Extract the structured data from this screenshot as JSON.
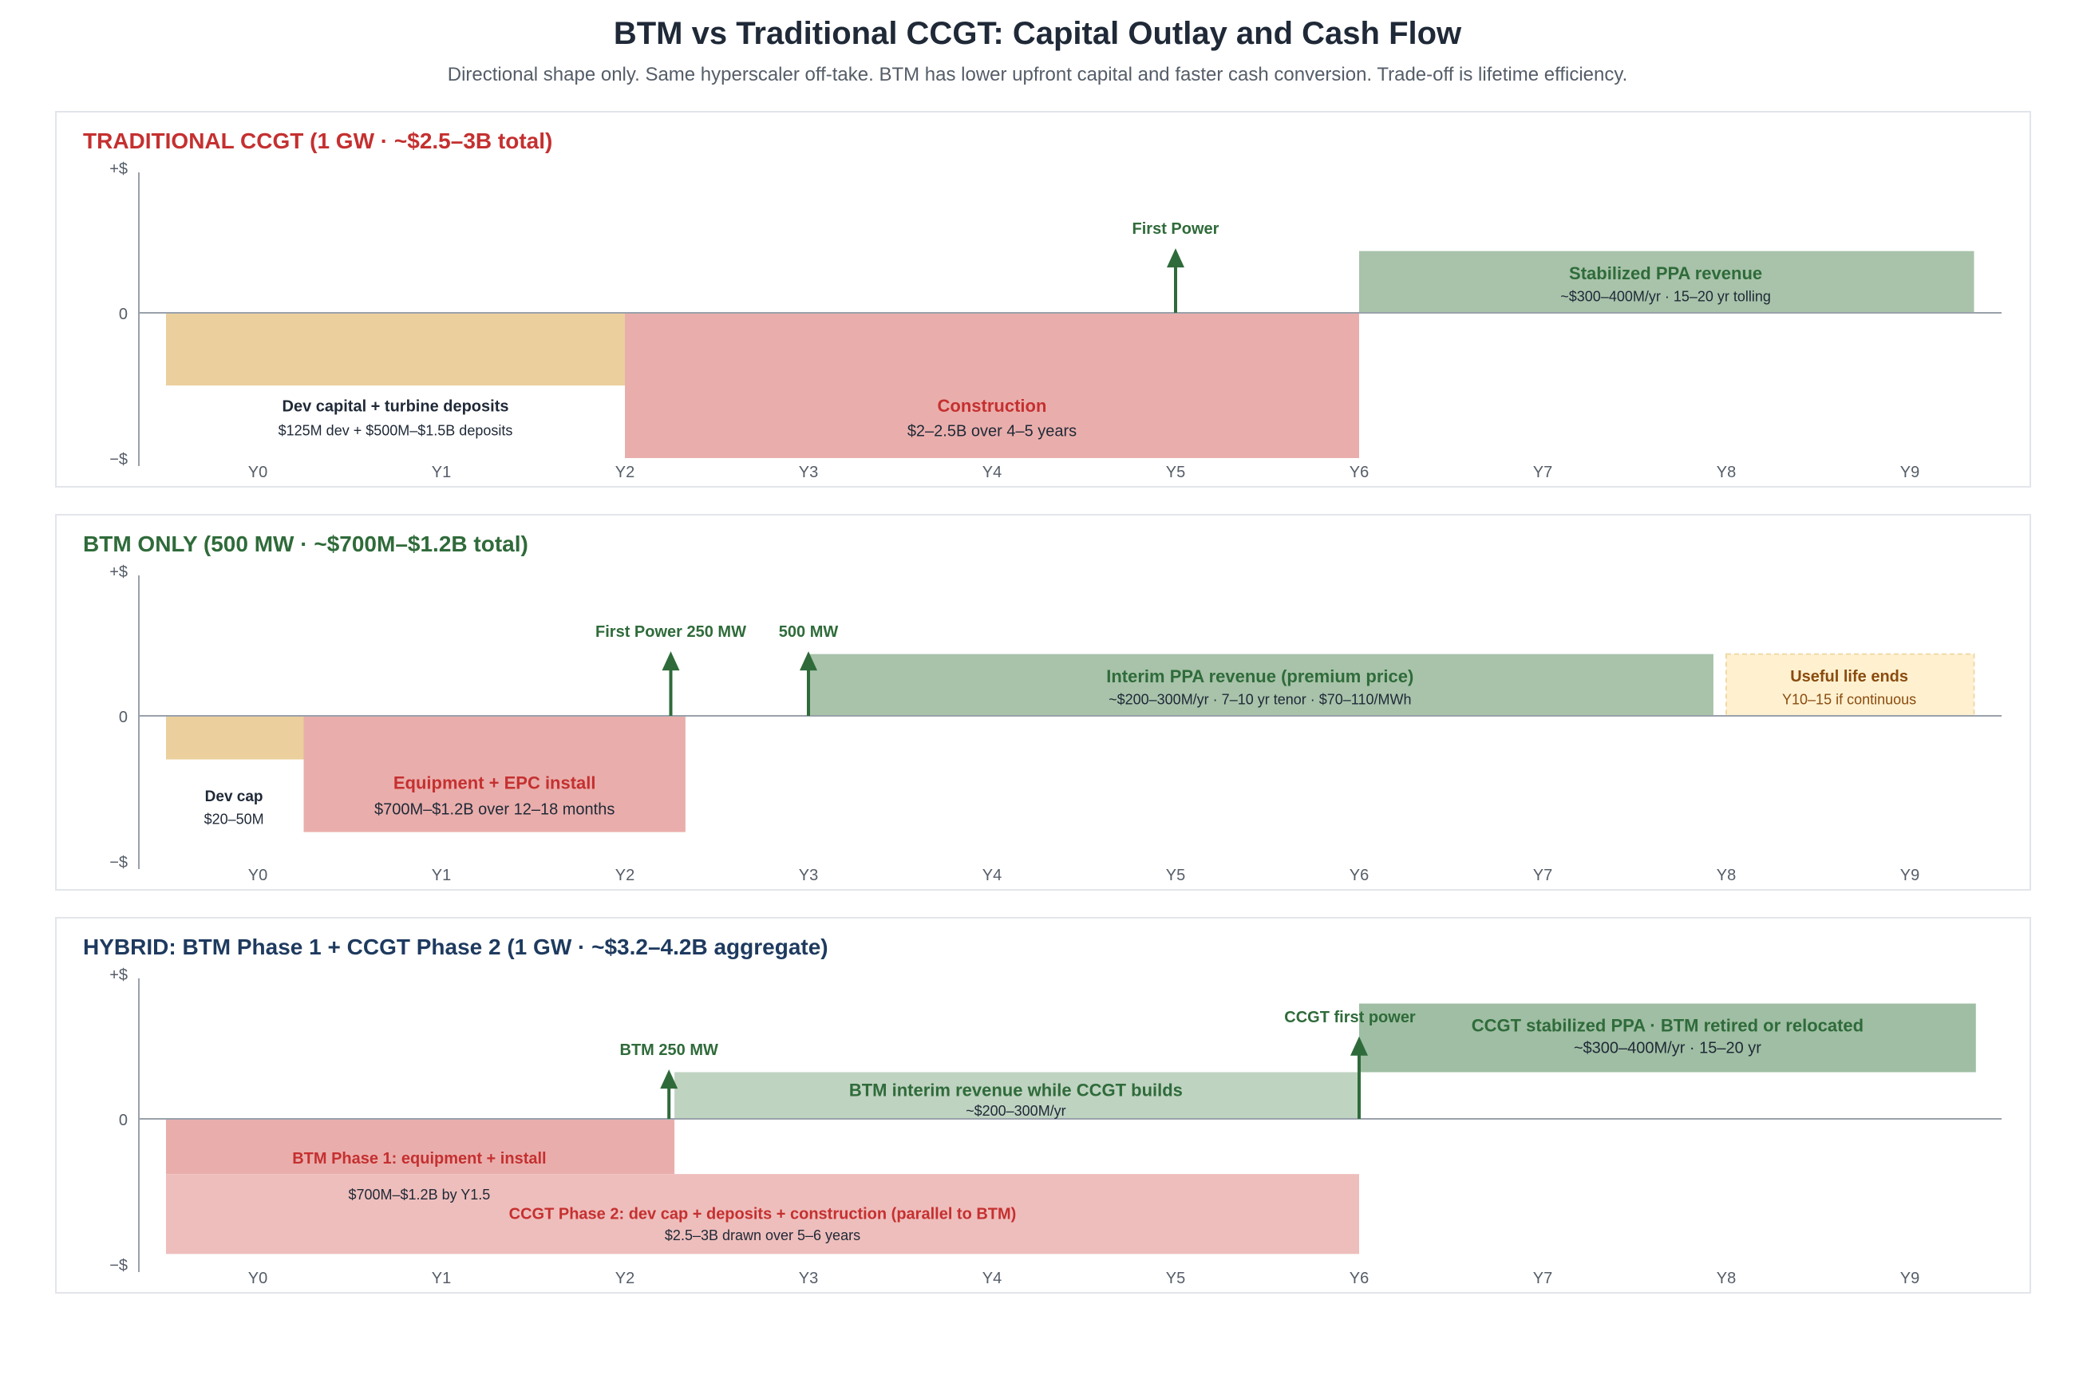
{
  "title": "BTM vs Traditional CCGT: Capital Outlay and Cash Flow",
  "subtitle": "Directional shape only. Same hyperscaler off-take. BTM has lower upfront capital and faster cash conversion. Trade-off is lifetime efficiency.",
  "colors": {
    "red": "#c53030",
    "green": "#2f6b3a",
    "navy": "#1e3a5f",
    "dark": "#1f2937",
    "grey": "#555d68",
    "amber": "#8a4b0f",
    "dev_fill": "#ebcf9c",
    "construction_fill": "#e9aeac",
    "revenue_fill": "#a8c3aa",
    "light_revenue_fill": "#bfd3c1",
    "dark_revenue_fill": "#9fbea3",
    "ccgt_phase_fill": "#eebebc",
    "life_fill": "#fff1d0",
    "panel_border": "#e2e5ea"
  },
  "chart_data": [
    {
      "type": "bar",
      "title": "TRADITIONAL CCGT (1 GW · ~$2.5–3B total)",
      "title_color": "red",
      "x_tick_labels": [
        "Y0",
        "Y1",
        "Y2",
        "Y3",
        "Y4",
        "Y5",
        "Y6",
        "Y7",
        "Y8",
        "Y9"
      ],
      "x_range": [
        -0.5,
        9.5
      ],
      "y_tick_labels": [
        "+$",
        "0",
        "−$"
      ],
      "y_range": [
        -1,
        1
      ],
      "blocks": [
        {
          "name": "dev-capital-block",
          "start": -0.5,
          "end": 2.0,
          "y0": -0.5,
          "y1": 0,
          "fill": "dev_fill"
        },
        {
          "name": "construction-block",
          "start": 2.0,
          "end": 6.0,
          "y0": -1.0,
          "y1": 0,
          "fill": "construction_fill"
        },
        {
          "name": "stabilized-ppa-block",
          "start": 6.0,
          "end": 9.35,
          "y0": 0,
          "y1": 0.45,
          "fill": "revenue_fill"
        }
      ],
      "labels": [
        {
          "text": "Dev capital + turbine deposits",
          "x": 0.75,
          "y": -0.64,
          "size": 20,
          "bold": true,
          "color": "dark"
        },
        {
          "text": "$125M dev + $500M–$1.5B deposits",
          "x": 0.75,
          "y": -0.81,
          "size": 18,
          "bold": false,
          "color": "dark"
        },
        {
          "text": "Construction",
          "x": 4.0,
          "y": -0.64,
          "size": 22,
          "bold": true,
          "color": "red"
        },
        {
          "text": "$2–2.5B over 4–5 years",
          "x": 4.0,
          "y": -0.81,
          "size": 20,
          "bold": false,
          "color": "dark"
        },
        {
          "text": "Stabilized PPA revenue",
          "x": 7.67,
          "y": 0.29,
          "size": 22,
          "bold": true,
          "color": "green"
        },
        {
          "text": "~$300–400M/yr · 15–20 yr tolling",
          "x": 7.67,
          "y": 0.12,
          "size": 18,
          "bold": false,
          "color": "dark"
        }
      ],
      "markers": [
        {
          "label": "First Power",
          "x": 5.0,
          "top": 0.47,
          "label_dx": 0
        }
      ]
    },
    {
      "type": "bar",
      "title": "BTM ONLY (500 MW · ~$700M–$1.2B total)",
      "title_color": "green",
      "x_tick_labels": [
        "Y0",
        "Y1",
        "Y2",
        "Y3",
        "Y4",
        "Y5",
        "Y6",
        "Y7",
        "Y8",
        "Y9"
      ],
      "x_range": [
        -0.5,
        9.5
      ],
      "y_tick_labels": [
        "+$",
        "0",
        "−$"
      ],
      "y_range": [
        -1,
        1
      ],
      "blocks": [
        {
          "name": "dev-cap-block",
          "start": -0.5,
          "end": 0.25,
          "y0": -0.3,
          "y1": 0,
          "fill": "dev_fill"
        },
        {
          "name": "equipment-epc-block",
          "start": 0.25,
          "end": 2.33,
          "y0": -0.8,
          "y1": 0,
          "fill": "construction_fill"
        },
        {
          "name": "interim-ppa-block",
          "start": 3.0,
          "end": 7.93,
          "y0": 0,
          "y1": 0.45,
          "fill": "revenue_fill"
        },
        {
          "name": "useful-life-block",
          "start": 8.0,
          "end": 9.35,
          "y0": 0,
          "y1": 0.45,
          "fill": "life_fill",
          "dashed": true
        }
      ],
      "labels": [
        {
          "text": "Dev cap",
          "x": -0.13,
          "y": -0.55,
          "size": 19,
          "bold": true,
          "color": "dark"
        },
        {
          "text": "$20–50M",
          "x": -0.13,
          "y": -0.71,
          "size": 18,
          "bold": false,
          "color": "dark"
        },
        {
          "text": "Equipment + EPC install",
          "x": 1.29,
          "y": -0.46,
          "size": 22,
          "bold": true,
          "color": "red"
        },
        {
          "text": "$700M–$1.2B over 12–18 months",
          "x": 1.29,
          "y": -0.64,
          "size": 20,
          "bold": false,
          "color": "dark"
        },
        {
          "text": "Interim PPA revenue (premium price)",
          "x": 5.46,
          "y": 0.29,
          "size": 22,
          "bold": true,
          "color": "green"
        },
        {
          "text": "~$200–300M/yr · 7–10 yr tenor · $70–110/MWh",
          "x": 5.46,
          "y": 0.12,
          "size": 18,
          "bold": false,
          "color": "dark"
        },
        {
          "text": "Useful life ends",
          "x": 8.67,
          "y": 0.29,
          "size": 20,
          "bold": true,
          "color": "amber"
        },
        {
          "text": "Y10–15 if continuous",
          "x": 8.67,
          "y": 0.12,
          "size": 18,
          "bold": false,
          "color": "amber"
        }
      ],
      "markers": [
        {
          "label": "First Power 250 MW",
          "x": 2.25,
          "top": 0.47,
          "label_dx": 0
        },
        {
          "label": "500 MW",
          "x": 3.0,
          "top": 0.47,
          "label_dx": 0
        }
      ]
    },
    {
      "type": "bar",
      "title": "HYBRID: BTM Phase 1 + CCGT Phase 2 (1 GW · ~$3.2–4.2B aggregate)",
      "title_color": "navy",
      "x_tick_labels": [
        "Y0",
        "Y1",
        "Y2",
        "Y3",
        "Y4",
        "Y5",
        "Y6",
        "Y7",
        "Y8",
        "Y9"
      ],
      "x_range": [
        -0.5,
        9.5
      ],
      "y_tick_labels": [
        "+$",
        "0",
        "−$"
      ],
      "y_range": [
        -1,
        1
      ],
      "blocks": [
        {
          "name": "btm-phase1-block",
          "start": -0.5,
          "end": 2.27,
          "y0": -0.38,
          "y1": 0,
          "fill": "construction_fill"
        },
        {
          "name": "ccgt-phase2-block",
          "start": -0.5,
          "end": 6.0,
          "y0": -0.93,
          "y1": -0.38,
          "fill": "ccgt_phase_fill"
        },
        {
          "name": "btm-interim-block",
          "start": 2.27,
          "end": 6.0,
          "y0": 0,
          "y1": 0.34,
          "fill": "light_revenue_fill"
        },
        {
          "name": "ccgt-stabilized-block",
          "start": 6.0,
          "end": 9.36,
          "y0": 0.34,
          "y1": 0.84,
          "fill": "dark_revenue_fill"
        }
      ],
      "labels": [
        {
          "text": "BTM Phase 1: equipment + install",
          "x": 0.88,
          "y": -0.27,
          "size": 20,
          "bold": true,
          "color": "red"
        },
        {
          "text": "$700M–$1.2B by Y1.5",
          "x": 0.88,
          "y": -0.52,
          "size": 18,
          "bold": false,
          "color": "dark"
        },
        {
          "text": "CCGT Phase 2: dev cap + deposits + construction (parallel to BTM)",
          "x": 2.75,
          "y": -0.65,
          "size": 20,
          "bold": true,
          "color": "red"
        },
        {
          "text": "$2.5–3B drawn over 5–6 years",
          "x": 2.75,
          "y": -0.8,
          "size": 18,
          "bold": false,
          "color": "dark"
        },
        {
          "text": "BTM interim revenue while CCGT builds",
          "x": 4.13,
          "y": 0.21,
          "size": 22,
          "bold": true,
          "color": "green"
        },
        {
          "text": "~$200–300M/yr",
          "x": 4.13,
          "y": 0.06,
          "size": 18,
          "bold": false,
          "color": "dark"
        },
        {
          "text": "CCGT stabilized PPA · BTM retired or relocated",
          "x": 7.68,
          "y": 0.68,
          "size": 22,
          "bold": true,
          "color": "green"
        },
        {
          "text": "~$300–400M/yr · 15–20 yr",
          "x": 7.68,
          "y": 0.52,
          "size": 20,
          "bold": false,
          "color": "dark"
        }
      ],
      "markers": [
        {
          "label": "BTM 250 MW",
          "x": 2.24,
          "top": 0.36,
          "label_dx": 0
        },
        {
          "label": "CCGT first power",
          "x": 6.0,
          "top": 0.6,
          "label_dx": -0.05
        }
      ]
    }
  ]
}
